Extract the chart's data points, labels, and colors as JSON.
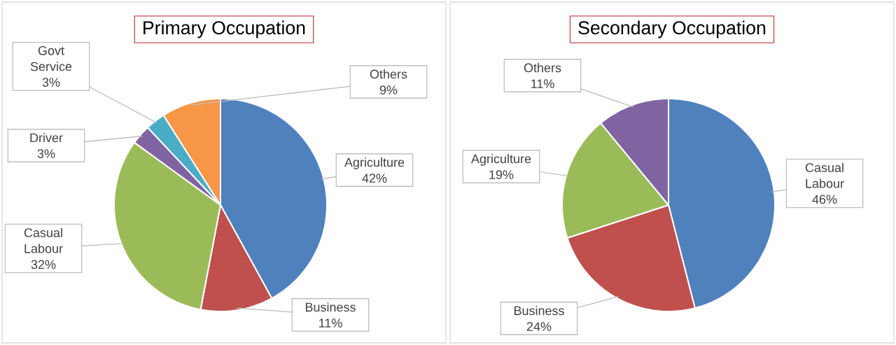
{
  "chart_data": [
    {
      "type": "pie",
      "title": "Primary Occupation",
      "categories": [
        "Agriculture",
        "Business",
        "Casual Labour",
        "Driver",
        "Govt Service",
        "Others"
      ],
      "values": [
        42,
        11,
        32,
        3,
        3,
        9
      ],
      "value_labels": [
        "42%",
        "11%",
        "32%",
        "3%",
        "3%",
        "9%"
      ],
      "colors": [
        "#4f81bd",
        "#c0504d",
        "#9bbb59",
        "#8064a2",
        "#4bacc6",
        "#f79646"
      ]
    },
    {
      "type": "pie",
      "title": "Secondary Occupation",
      "categories": [
        "Casual Labour",
        "Business",
        "Agriculture",
        "Others"
      ],
      "values": [
        46,
        24,
        19,
        11
      ],
      "value_labels": [
        "46%",
        "24%",
        "19%",
        "11%"
      ],
      "colors": [
        "#4f81bd",
        "#c0504d",
        "#9bbb59",
        "#8064a2"
      ]
    }
  ]
}
